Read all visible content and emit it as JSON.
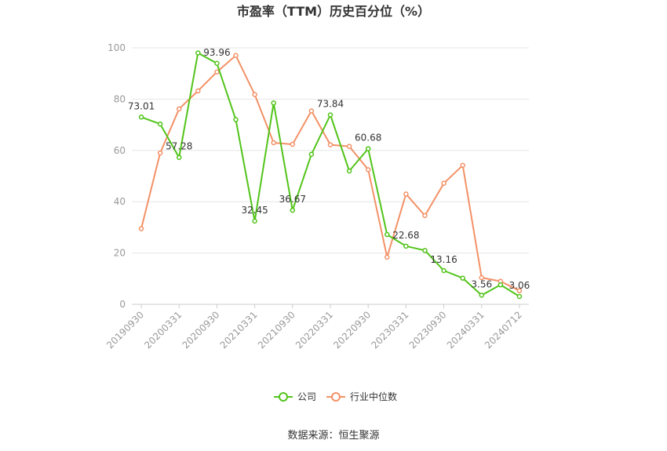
{
  "chart_data": {
    "type": "line",
    "title": "市盈率（TTM）历史百分位（%）",
    "source": "数据来源：恒生聚源",
    "ylim": [
      0,
      100
    ],
    "yticks": [
      0,
      20,
      40,
      60,
      80,
      100
    ],
    "x_tick_labels": [
      "20190930",
      "20200331",
      "20200930",
      "20210331",
      "20210930",
      "20220331",
      "20220930",
      "20230331",
      "20230930",
      "20240331",
      "20240712"
    ],
    "grid": true,
    "legend_position": "bottom",
    "series": [
      {
        "name": "公司",
        "color": "#52c41a",
        "values": [
          73.01,
          70.3,
          57.28,
          98.0,
          93.96,
          72.0,
          32.45,
          78.5,
          36.67,
          58.5,
          73.84,
          52.0,
          60.68,
          27.2,
          22.68,
          21.0,
          13.16,
          10.2,
          3.56,
          7.6,
          3.06
        ]
      },
      {
        "name": "行业中位数",
        "color": "#f39167",
        "values": [
          29.5,
          59.0,
          76.2,
          83.2,
          90.6,
          97.0,
          81.8,
          63.0,
          62.4,
          75.4,
          62.2,
          61.6,
          52.5,
          18.4,
          43.0,
          34.6,
          47.2,
          54.2,
          10.4,
          9.0,
          5.3
        ]
      }
    ],
    "data_labels": [
      {
        "series": 0,
        "index": 0,
        "text": "73.01"
      },
      {
        "series": 0,
        "index": 2,
        "text": "57.28"
      },
      {
        "series": 0,
        "index": 4,
        "text": "93.96"
      },
      {
        "series": 0,
        "index": 6,
        "text": "32.45"
      },
      {
        "series": 0,
        "index": 8,
        "text": "36.67"
      },
      {
        "series": 0,
        "index": 10,
        "text": "73.84"
      },
      {
        "series": 0,
        "index": 12,
        "text": "60.68"
      },
      {
        "series": 0,
        "index": 14,
        "text": "22.68"
      },
      {
        "series": 0,
        "index": 16,
        "text": "13.16"
      },
      {
        "series": 0,
        "index": 18,
        "text": "3.56"
      },
      {
        "series": 0,
        "index": 20,
        "text": "3.06"
      }
    ]
  }
}
